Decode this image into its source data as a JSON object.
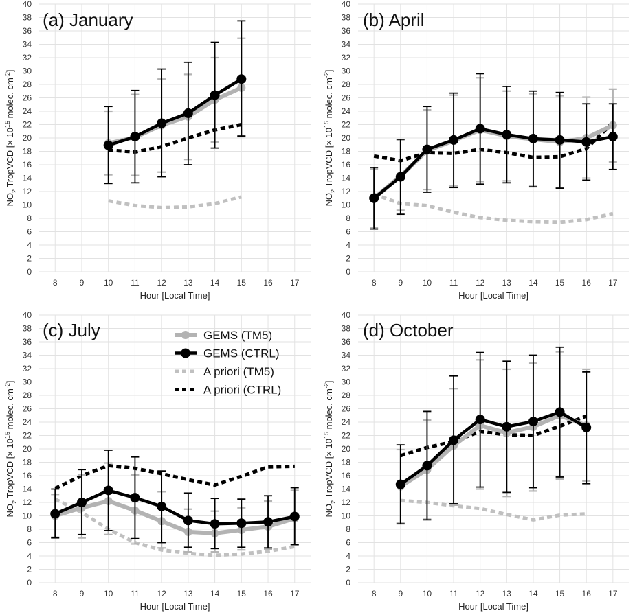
{
  "chart_data": [
    {
      "type": "line",
      "title": "(a) January",
      "xlabel": "Hour [Local Time]",
      "ylabel": {
        "species": "NO",
        "sub": "2",
        "main": " TropVCD [",
        "times": "×",
        "base": " 10",
        "exp": "15",
        "unit": " molec. cm",
        "unit_exp": "-2",
        "close": "]"
      },
      "xlim": [
        7.4,
        17.6
      ],
      "ylim": [
        0,
        40
      ],
      "xticks": [
        8,
        9,
        10,
        11,
        12,
        13,
        14,
        15,
        16,
        17
      ],
      "yticks": [
        0,
        2,
        4,
        6,
        8,
        10,
        12,
        14,
        16,
        18,
        20,
        22,
        24,
        26,
        28,
        30,
        32,
        34,
        36,
        38,
        40
      ],
      "grid": true,
      "series": [
        {
          "name": "GEMS (TM5)",
          "style": "gems_tm5",
          "color": "#b3b3b3",
          "x": [
            10,
            11,
            12,
            13,
            14,
            15
          ],
          "y": [
            19.2,
            20.1,
            21.9,
            23.2,
            25.7,
            27.5
          ],
          "err_low": [
            14.5,
            14.4,
            14.9,
            16.8,
            19.4,
            20.2
          ],
          "err_high": [
            24.0,
            26.5,
            28.8,
            29.5,
            32.0,
            34.9
          ]
        },
        {
          "name": "GEMS (CTRL)",
          "style": "gems_ctrl",
          "color": "#000000",
          "x": [
            10,
            11,
            12,
            13,
            14,
            15
          ],
          "y": [
            18.9,
            20.2,
            22.2,
            23.7,
            26.4,
            28.8
          ],
          "err_low": [
            13.2,
            13.3,
            14.2,
            16.0,
            18.5,
            20.3
          ],
          "err_high": [
            24.7,
            27.1,
            30.3,
            31.3,
            34.3,
            37.5
          ]
        },
        {
          "name": "A priori (TM5)",
          "style": "apriori_tm5",
          "color": "#c0c0c0",
          "x": [
            10,
            11,
            12,
            13,
            14,
            15
          ],
          "y": [
            10.6,
            9.9,
            9.6,
            9.7,
            10.2,
            11.2
          ]
        },
        {
          "name": "A priori (CTRL)",
          "style": "apriori_ctrl",
          "color": "#000000",
          "x": [
            10,
            11,
            12,
            13,
            14,
            15
          ],
          "y": [
            18.2,
            17.9,
            18.7,
            20.0,
            21.2,
            22.0
          ]
        }
      ]
    },
    {
      "type": "line",
      "title": "(b) April",
      "xlabel": "Hour [Local Time]",
      "ylabel": {
        "species": "NO",
        "sub": "2",
        "main": " TropVCD [",
        "times": "×",
        "base": " 10",
        "exp": "15",
        "unit": " molec. cm",
        "unit_exp": "-2",
        "close": "]"
      },
      "xlim": [
        7.4,
        17.6
      ],
      "ylim": [
        0,
        40
      ],
      "xticks": [
        8,
        9,
        10,
        11,
        12,
        13,
        14,
        15,
        16,
        17
      ],
      "yticks": [
        0,
        2,
        4,
        6,
        8,
        10,
        12,
        14,
        16,
        18,
        20,
        22,
        24,
        26,
        28,
        30,
        32,
        34,
        36,
        38,
        40
      ],
      "grid": true,
      "series": [
        {
          "name": "GEMS (TM5)",
          "style": "gems_tm5",
          "color": "#b3b3b3",
          "x": [
            8,
            9,
            10,
            11,
            12,
            13,
            14,
            15,
            16,
            17
          ],
          "y": [
            11.0,
            14.3,
            18.1,
            19.6,
            21.2,
            20.3,
            19.8,
            19.4,
            20.0,
            21.9
          ],
          "err_low": [
            6.6,
            9.2,
            12.3,
            12.8,
            13.5,
            13.6,
            12.8,
            12.6,
            14.0,
            16.4
          ],
          "err_high": [
            15.4,
            19.6,
            24.2,
            26.4,
            29.0,
            27.0,
            26.6,
            26.3,
            26.1,
            27.3
          ]
        },
        {
          "name": "GEMS (CTRL)",
          "style": "gems_ctrl",
          "color": "#000000",
          "x": [
            8,
            9,
            10,
            11,
            12,
            13,
            14,
            15,
            16,
            17
          ],
          "y": [
            11.0,
            14.2,
            18.3,
            19.7,
            21.4,
            20.5,
            19.9,
            19.7,
            19.4,
            20.2
          ],
          "err_low": [
            6.4,
            8.6,
            11.9,
            12.6,
            13.1,
            13.3,
            12.7,
            12.5,
            13.7,
            15.3
          ],
          "err_high": [
            15.6,
            19.8,
            24.7,
            26.7,
            29.6,
            27.7,
            27.0,
            26.8,
            25.1,
            25.1
          ]
        },
        {
          "name": "A priori (TM5)",
          "style": "apriori_tm5",
          "color": "#c0c0c0",
          "x": [
            8,
            9,
            10,
            11,
            12,
            13,
            14,
            15,
            16,
            17
          ],
          "y": [
            11.6,
            10.2,
            9.9,
            8.9,
            8.1,
            7.7,
            7.5,
            7.4,
            7.8,
            8.7
          ]
        },
        {
          "name": "A priori (CTRL)",
          "style": "apriori_ctrl",
          "color": "#000000",
          "x": [
            8,
            9,
            10,
            11,
            12,
            13,
            14,
            15,
            16,
            17
          ],
          "y": [
            17.3,
            16.6,
            17.8,
            17.7,
            18.3,
            17.8,
            17.1,
            17.2,
            18.4,
            22.3
          ]
        }
      ]
    },
    {
      "type": "line",
      "title": "(c) July",
      "xlabel": "Hour [Local Time]",
      "ylabel": {
        "species": "NO",
        "sub": "2",
        "main": " TropVCD [",
        "times": "×",
        "base": " 10",
        "exp": "15",
        "unit": " molec. cm",
        "unit_exp": "-2",
        "close": "]"
      },
      "xlim": [
        7.4,
        17.6
      ],
      "ylim": [
        0,
        40
      ],
      "xticks": [
        8,
        9,
        10,
        11,
        12,
        13,
        14,
        15,
        16,
        17
      ],
      "yticks": [
        0,
        2,
        4,
        6,
        8,
        10,
        12,
        14,
        16,
        18,
        20,
        22,
        24,
        26,
        28,
        30,
        32,
        34,
        36,
        38,
        40
      ],
      "grid": true,
      "series": [
        {
          "name": "GEMS (TM5)",
          "style": "gems_tm5",
          "color": "#b3b3b3",
          "x": [
            8,
            9,
            10,
            11,
            12,
            13,
            14,
            15,
            16,
            17
          ],
          "y": [
            10.0,
            11.2,
            12.2,
            10.8,
            9.2,
            7.6,
            7.4,
            7.9,
            8.4,
            9.6
          ],
          "err_low": [
            6.8,
            6.7,
            7.2,
            5.8,
            5.2,
            4.6,
            4.6,
            4.9,
            5.0,
            5.6
          ],
          "err_high": [
            13.2,
            16.1,
            17.9,
            16.1,
            13.6,
            11.0,
            10.7,
            11.2,
            12.2,
            13.8
          ]
        },
        {
          "name": "GEMS (CTRL)",
          "style": "gems_ctrl",
          "color": "#000000",
          "x": [
            8,
            9,
            10,
            11,
            12,
            13,
            14,
            15,
            16,
            17
          ],
          "y": [
            10.3,
            12.0,
            13.8,
            12.7,
            11.4,
            9.3,
            8.8,
            8.9,
            9.1,
            9.9
          ],
          "err_low": [
            6.7,
            7.2,
            7.8,
            6.6,
            6.0,
            5.3,
            5.1,
            5.3,
            5.2,
            5.7
          ],
          "err_high": [
            14.0,
            16.9,
            19.8,
            18.8,
            16.7,
            13.4,
            12.6,
            12.5,
            13.0,
            14.2
          ]
        },
        {
          "name": "A priori (TM5)",
          "style": "apriori_tm5",
          "color": "#c0c0c0",
          "x": [
            8,
            9,
            10,
            11,
            12,
            13,
            14,
            15,
            16,
            17
          ],
          "y": [
            12.5,
            10.5,
            8.0,
            6.0,
            4.9,
            4.4,
            4.1,
            4.3,
            4.7,
            5.4
          ]
        },
        {
          "name": "A priori (CTRL)",
          "style": "apriori_ctrl",
          "color": "#000000",
          "x": [
            8,
            9,
            10,
            11,
            12,
            13,
            14,
            15,
            16,
            17
          ],
          "y": [
            14.1,
            16.0,
            17.5,
            17.1,
            16.3,
            15.4,
            14.6,
            15.9,
            17.3,
            17.4
          ]
        }
      ]
    },
    {
      "type": "line",
      "title": "(d) October",
      "xlabel": "Hour [Local Time]",
      "ylabel": {
        "species": "NO",
        "sub": "2",
        "main": " TropVCD [",
        "times": "×",
        "base": " 10",
        "exp": "15",
        "unit": " molec. cm",
        "unit_exp": "-2",
        "close": "]"
      },
      "xlim": [
        7.4,
        17.6
      ],
      "ylim": [
        0,
        40
      ],
      "xticks": [
        8,
        9,
        10,
        11,
        12,
        13,
        14,
        15,
        16,
        17
      ],
      "yticks": [
        0,
        2,
        4,
        6,
        8,
        10,
        12,
        14,
        16,
        18,
        20,
        22,
        24,
        26,
        28,
        30,
        32,
        34,
        36,
        38,
        40
      ],
      "grid": true,
      "series": [
        {
          "name": "GEMS (TM5)",
          "style": "gems_tm5",
          "color": "#b3b3b3",
          "x": [
            9,
            10,
            11,
            12,
            13,
            14,
            15,
            16
          ],
          "y": [
            14.4,
            16.9,
            20.5,
            23.5,
            22.4,
            23.3,
            25.0,
            23.5
          ],
          "err_low": [
            9.0,
            9.5,
            11.6,
            14.0,
            12.9,
            13.7,
            15.5,
            15.2
          ],
          "err_high": [
            19.9,
            24.3,
            29.0,
            33.3,
            31.9,
            32.8,
            34.5,
            31.9
          ]
        },
        {
          "name": "GEMS (CTRL)",
          "style": "gems_ctrl",
          "color": "#000000",
          "x": [
            9,
            10,
            11,
            12,
            13,
            14,
            15,
            16
          ],
          "y": [
            14.7,
            17.5,
            21.3,
            24.4,
            23.3,
            24.1,
            25.5,
            23.2
          ],
          "err_low": [
            8.8,
            9.4,
            11.8,
            14.3,
            13.5,
            14.2,
            15.8,
            14.8
          ],
          "err_high": [
            20.6,
            25.6,
            30.9,
            34.4,
            33.1,
            34.0,
            35.2,
            31.5
          ]
        },
        {
          "name": "A priori (TM5)",
          "style": "apriori_tm5",
          "color": "#c0c0c0",
          "x": [
            9,
            10,
            11,
            12,
            13,
            14,
            15,
            16
          ],
          "y": [
            12.3,
            12.0,
            11.5,
            11.1,
            10.2,
            9.4,
            10.1,
            10.3
          ]
        },
        {
          "name": "A priori (CTRL)",
          "style": "apriori_ctrl",
          "color": "#000000",
          "x": [
            9,
            10,
            11,
            12,
            13,
            14,
            15,
            16
          ],
          "y": [
            19.0,
            20.2,
            21.1,
            22.6,
            22.1,
            22.0,
            23.4,
            24.9
          ]
        }
      ]
    }
  ],
  "legend": {
    "location": "panel (c), top-right",
    "entries": [
      {
        "label": "GEMS (TM5)",
        "style": "gems_tm5"
      },
      {
        "label": "GEMS (CTRL)",
        "style": "gems_ctrl"
      },
      {
        "label": "A priori (TM5)",
        "style": "apriori_tm5"
      },
      {
        "label": "A priori (CTRL)",
        "style": "apriori_ctrl"
      }
    ]
  }
}
